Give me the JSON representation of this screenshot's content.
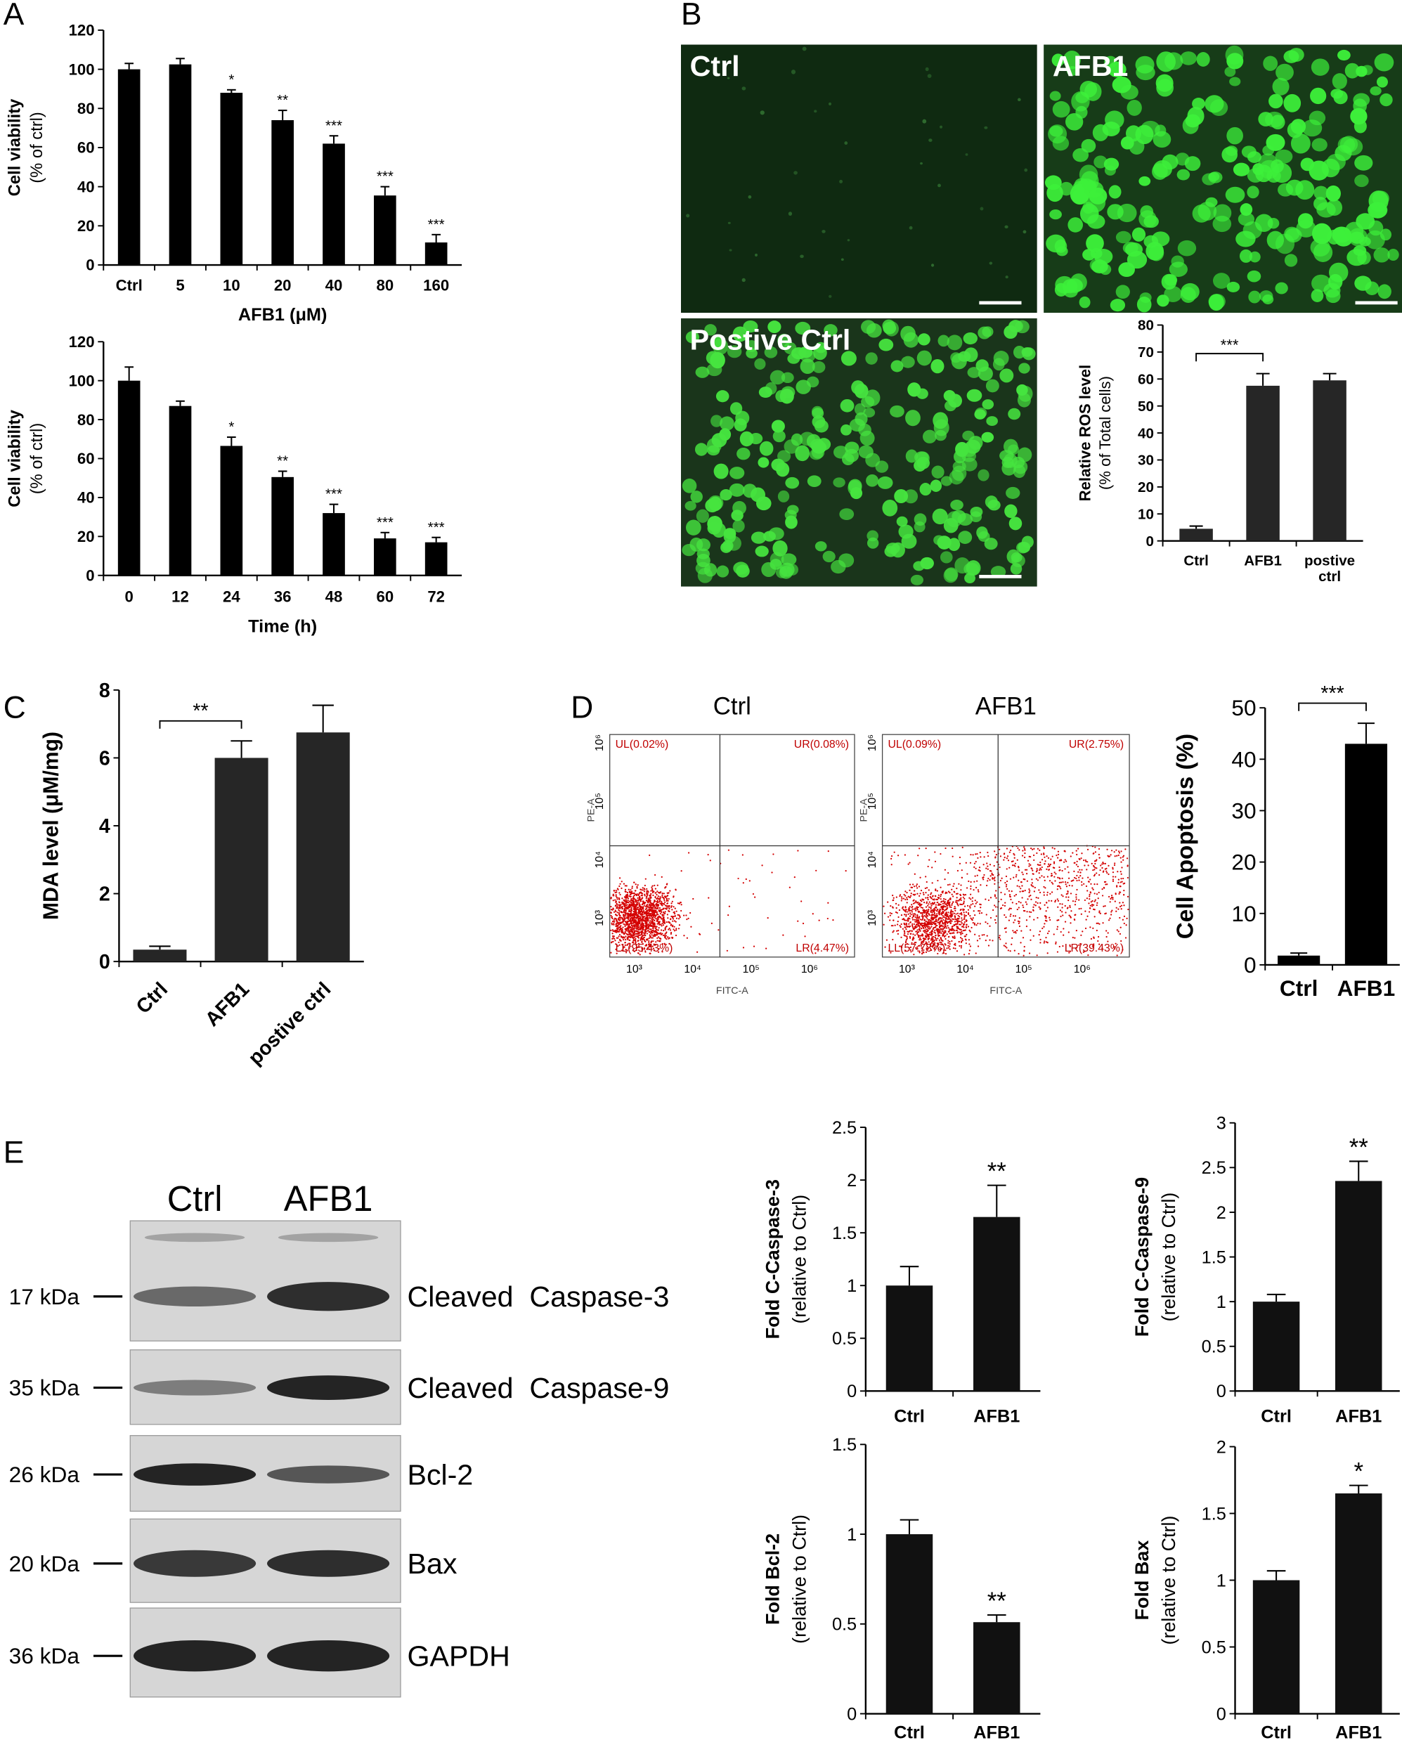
{
  "panel_labels": [
    "A",
    "B",
    "C",
    "D",
    "E"
  ],
  "chart_data": [
    {
      "type": "bar",
      "ylabel": [
        "Cell viability",
        "(% of ctrl)"
      ],
      "xlabel": "AFB1 (μM)",
      "categories": [
        "Ctrl",
        "5",
        "10",
        "20",
        "40",
        "80",
        "160"
      ],
      "values": [
        100,
        102.5,
        88,
        74,
        62,
        35.5,
        11.5
      ],
      "errors": [
        3,
        3,
        1.5,
        5,
        4,
        4.5,
        4
      ],
      "significance": [
        null,
        null,
        "*",
        "**",
        "***",
        "***",
        "***"
      ],
      "color": "#000000",
      "ylim": [
        0,
        120
      ],
      "yticks": [
        0,
        20,
        40,
        60,
        80,
        100,
        120
      ]
    },
    {
      "type": "bar",
      "ylabel": [
        "Cell viability",
        "(% of ctrl)"
      ],
      "xlabel": "Time (h)",
      "categories": [
        "0",
        "12",
        "24",
        "36",
        "48",
        "60",
        "72"
      ],
      "values": [
        100,
        87,
        66.5,
        50.5,
        32,
        19,
        17
      ],
      "errors": [
        7,
        2.5,
        4.5,
        3,
        4.5,
        3,
        2.5
      ],
      "significance": [
        null,
        null,
        "*",
        "**",
        "***",
        "***",
        "***"
      ],
      "color": "#000000",
      "ylim": [
        0,
        120
      ],
      "yticks": [
        0,
        20,
        40,
        60,
        80,
        100,
        120
      ]
    },
    {
      "type": "bar",
      "ylabel": [
        "Relative ROS level",
        "(% of Total cells)"
      ],
      "categories": [
        "Ctrl",
        "AFB1",
        "postive ctrl"
      ],
      "values": [
        4.5,
        57.5,
        59.5
      ],
      "errors": [
        1,
        4.5,
        2.5
      ],
      "bracket_label": "***",
      "color": "#262626",
      "ylim": [
        0,
        80
      ],
      "yticks": [
        0,
        10,
        20,
        30,
        40,
        50,
        60,
        70,
        80
      ]
    },
    {
      "type": "bar",
      "ylabel": [
        "MDA level (μM/mg)"
      ],
      "categories": [
        "Ctrl",
        "AFB1",
        "postive ctrl"
      ],
      "values": [
        0.35,
        6.0,
        6.75
      ],
      "errors": [
        0.1,
        0.5,
        0.8
      ],
      "bracket_label": "**",
      "color": "#262626",
      "ylim": [
        0,
        8
      ],
      "yticks": [
        0,
        2,
        4,
        6,
        8
      ]
    },
    {
      "type": "bar",
      "ylabel": [
        "Cell Apoptosis (%)"
      ],
      "categories": [
        "Ctrl",
        "AFB1"
      ],
      "values": [
        1.8,
        43
      ],
      "errors": [
        0.5,
        4
      ],
      "bracket_label": "***",
      "color": "#000000",
      "ylim": [
        0,
        50
      ],
      "yticks": [
        0,
        10,
        20,
        30,
        40,
        50
      ]
    },
    {
      "type": "bar",
      "ylabel": [
        "Fold C-Caspase-3",
        "(relative to Ctrl)"
      ],
      "categories": [
        "Ctrl",
        "AFB1"
      ],
      "values": [
        1.0,
        1.65
      ],
      "errors": [
        0.18,
        0.3
      ],
      "significance": [
        null,
        "**"
      ],
      "color": "#111111",
      "ylim": [
        0,
        2.5
      ],
      "yticks": [
        0,
        0.5,
        1,
        1.5,
        2,
        2.5
      ]
    },
    {
      "type": "bar",
      "ylabel": [
        "Fold C-Caspase-9",
        "(relative to Ctrl)"
      ],
      "categories": [
        "Ctrl",
        "AFB1"
      ],
      "values": [
        1.0,
        2.35
      ],
      "errors": [
        0.08,
        0.22
      ],
      "significance": [
        null,
        "**"
      ],
      "color": "#111111",
      "ylim": [
        0,
        3
      ],
      "yticks": [
        0,
        0.5,
        1,
        1.5,
        2,
        2.5,
        3
      ]
    },
    {
      "type": "bar",
      "ylabel": [
        "Fold Bcl-2",
        "(relative to Ctrl)"
      ],
      "categories": [
        "Ctrl",
        "AFB1"
      ],
      "values": [
        1.0,
        0.51
      ],
      "errors": [
        0.08,
        0.04
      ],
      "significance": [
        null,
        "**"
      ],
      "color": "#111111",
      "ylim": [
        0,
        1.5
      ],
      "yticks": [
        0,
        0.5,
        1,
        1.5
      ]
    },
    {
      "type": "bar",
      "ylabel": [
        "Fold Bax",
        "(relative to Ctrl)"
      ],
      "categories": [
        "Ctrl",
        "AFB1"
      ],
      "values": [
        1.0,
        1.65
      ],
      "errors": [
        0.07,
        0.06
      ],
      "significance": [
        null,
        "*"
      ],
      "color": "#111111",
      "ylim": [
        0,
        2
      ],
      "yticks": [
        0,
        0.5,
        1,
        1.5,
        2
      ]
    }
  ],
  "micrographs": [
    {
      "label": "Ctrl"
    },
    {
      "label": "AFB1"
    },
    {
      "label": "Postive Ctrl"
    }
  ],
  "flow_cytometry": {
    "x_label": "FITC-A",
    "y_label": "PE-A",
    "x_ticks": [
      "10³",
      "10⁴",
      "10⁵",
      "10⁶"
    ],
    "y_ticks": [
      "10³",
      "10⁴",
      "10⁵",
      "10⁶"
    ],
    "plots": [
      {
        "title": "Ctrl",
        "quadrants": [
          "UL(0.02%)",
          "UR(0.08%)",
          "LL(95.43%)",
          "LR(4.47%)"
        ]
      },
      {
        "title": "AFB1",
        "quadrants": [
          "UL(0.09%)",
          "UR(2.75%)",
          "LL(57.73%)",
          "LR(39.43%)"
        ]
      }
    ]
  },
  "western_blot": {
    "lanes": [
      "Ctrl",
      "AFB1"
    ],
    "rows": [
      {
        "marker": "17 kDa",
        "protein": "Cleaved  Caspase-3"
      },
      {
        "marker": "35 kDa",
        "protein": "Cleaved  Caspase-9"
      },
      {
        "marker": "26 kDa",
        "protein": "Bcl-2"
      },
      {
        "marker": "20 kDa",
        "protein": "Bax"
      },
      {
        "marker": "36 kDa",
        "protein": "GAPDH"
      }
    ]
  }
}
